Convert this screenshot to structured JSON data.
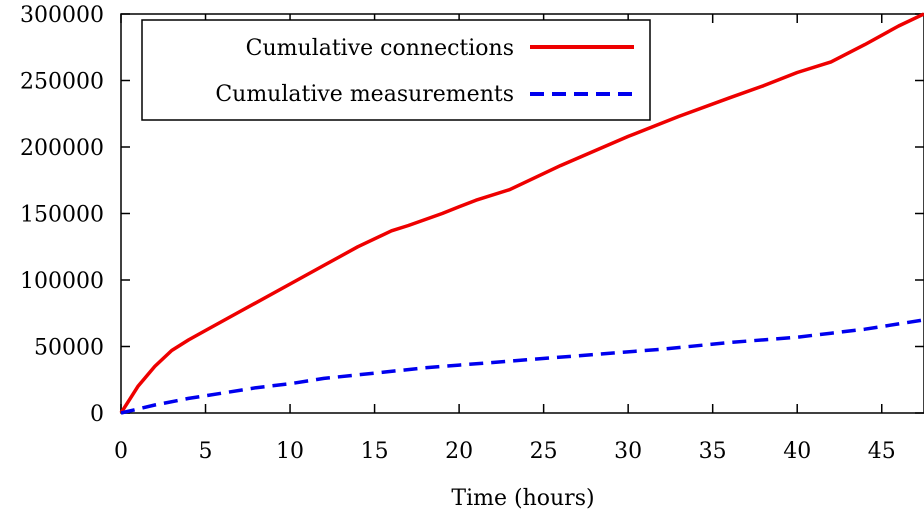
{
  "chart_data": {
    "type": "line",
    "title": "",
    "xlabel": "Time (hours)",
    "ylabel": "",
    "xlim": [
      0,
      47.5
    ],
    "ylim": [
      0,
      300000
    ],
    "xticks": [
      0,
      5,
      10,
      15,
      20,
      25,
      30,
      35,
      40,
      45
    ],
    "yticks": [
      0,
      50000,
      100000,
      150000,
      200000,
      250000,
      300000
    ],
    "xtick_labels": [
      "0",
      "5",
      "10",
      "15",
      "20",
      "25",
      "30",
      "35",
      "40",
      "45"
    ],
    "ytick_labels": [
      "0",
      "50000",
      "100000",
      "150000",
      "200000",
      "250000",
      "300000"
    ],
    "grid": false,
    "legend_position": "top-left",
    "series": [
      {
        "name": "Cumulative connections",
        "color": "#ee0000",
        "dash": "solid",
        "x": [
          0,
          0.5,
          1,
          2,
          3,
          4,
          5,
          7,
          10,
          12,
          13,
          14,
          16,
          17,
          19,
          20,
          21,
          23,
          24,
          25,
          26,
          28,
          30,
          33,
          36,
          38,
          40,
          42,
          44,
          46,
          47.5
        ],
        "y": [
          0,
          10000,
          20000,
          35000,
          47000,
          55000,
          62000,
          76000,
          97000,
          111000,
          118000,
          125000,
          137000,
          141000,
          150000,
          155000,
          160000,
          168000,
          174000,
          180000,
          186000,
          197000,
          208000,
          223000,
          237000,
          246000,
          256000,
          264000,
          277000,
          291000,
          300000
        ]
      },
      {
        "name": "Cumulative measurements",
        "color": "#0000ee",
        "dash": "dashed",
        "x": [
          0,
          2,
          4,
          6,
          8,
          10,
          12,
          15,
          18,
          20,
          24,
          28,
          32,
          36,
          40,
          42,
          44,
          46,
          47.5
        ],
        "y": [
          0,
          6000,
          11000,
          15000,
          19000,
          22000,
          26000,
          30000,
          34000,
          36000,
          40000,
          44000,
          48000,
          53000,
          57000,
          60000,
          63000,
          67000,
          70000
        ]
      }
    ]
  }
}
